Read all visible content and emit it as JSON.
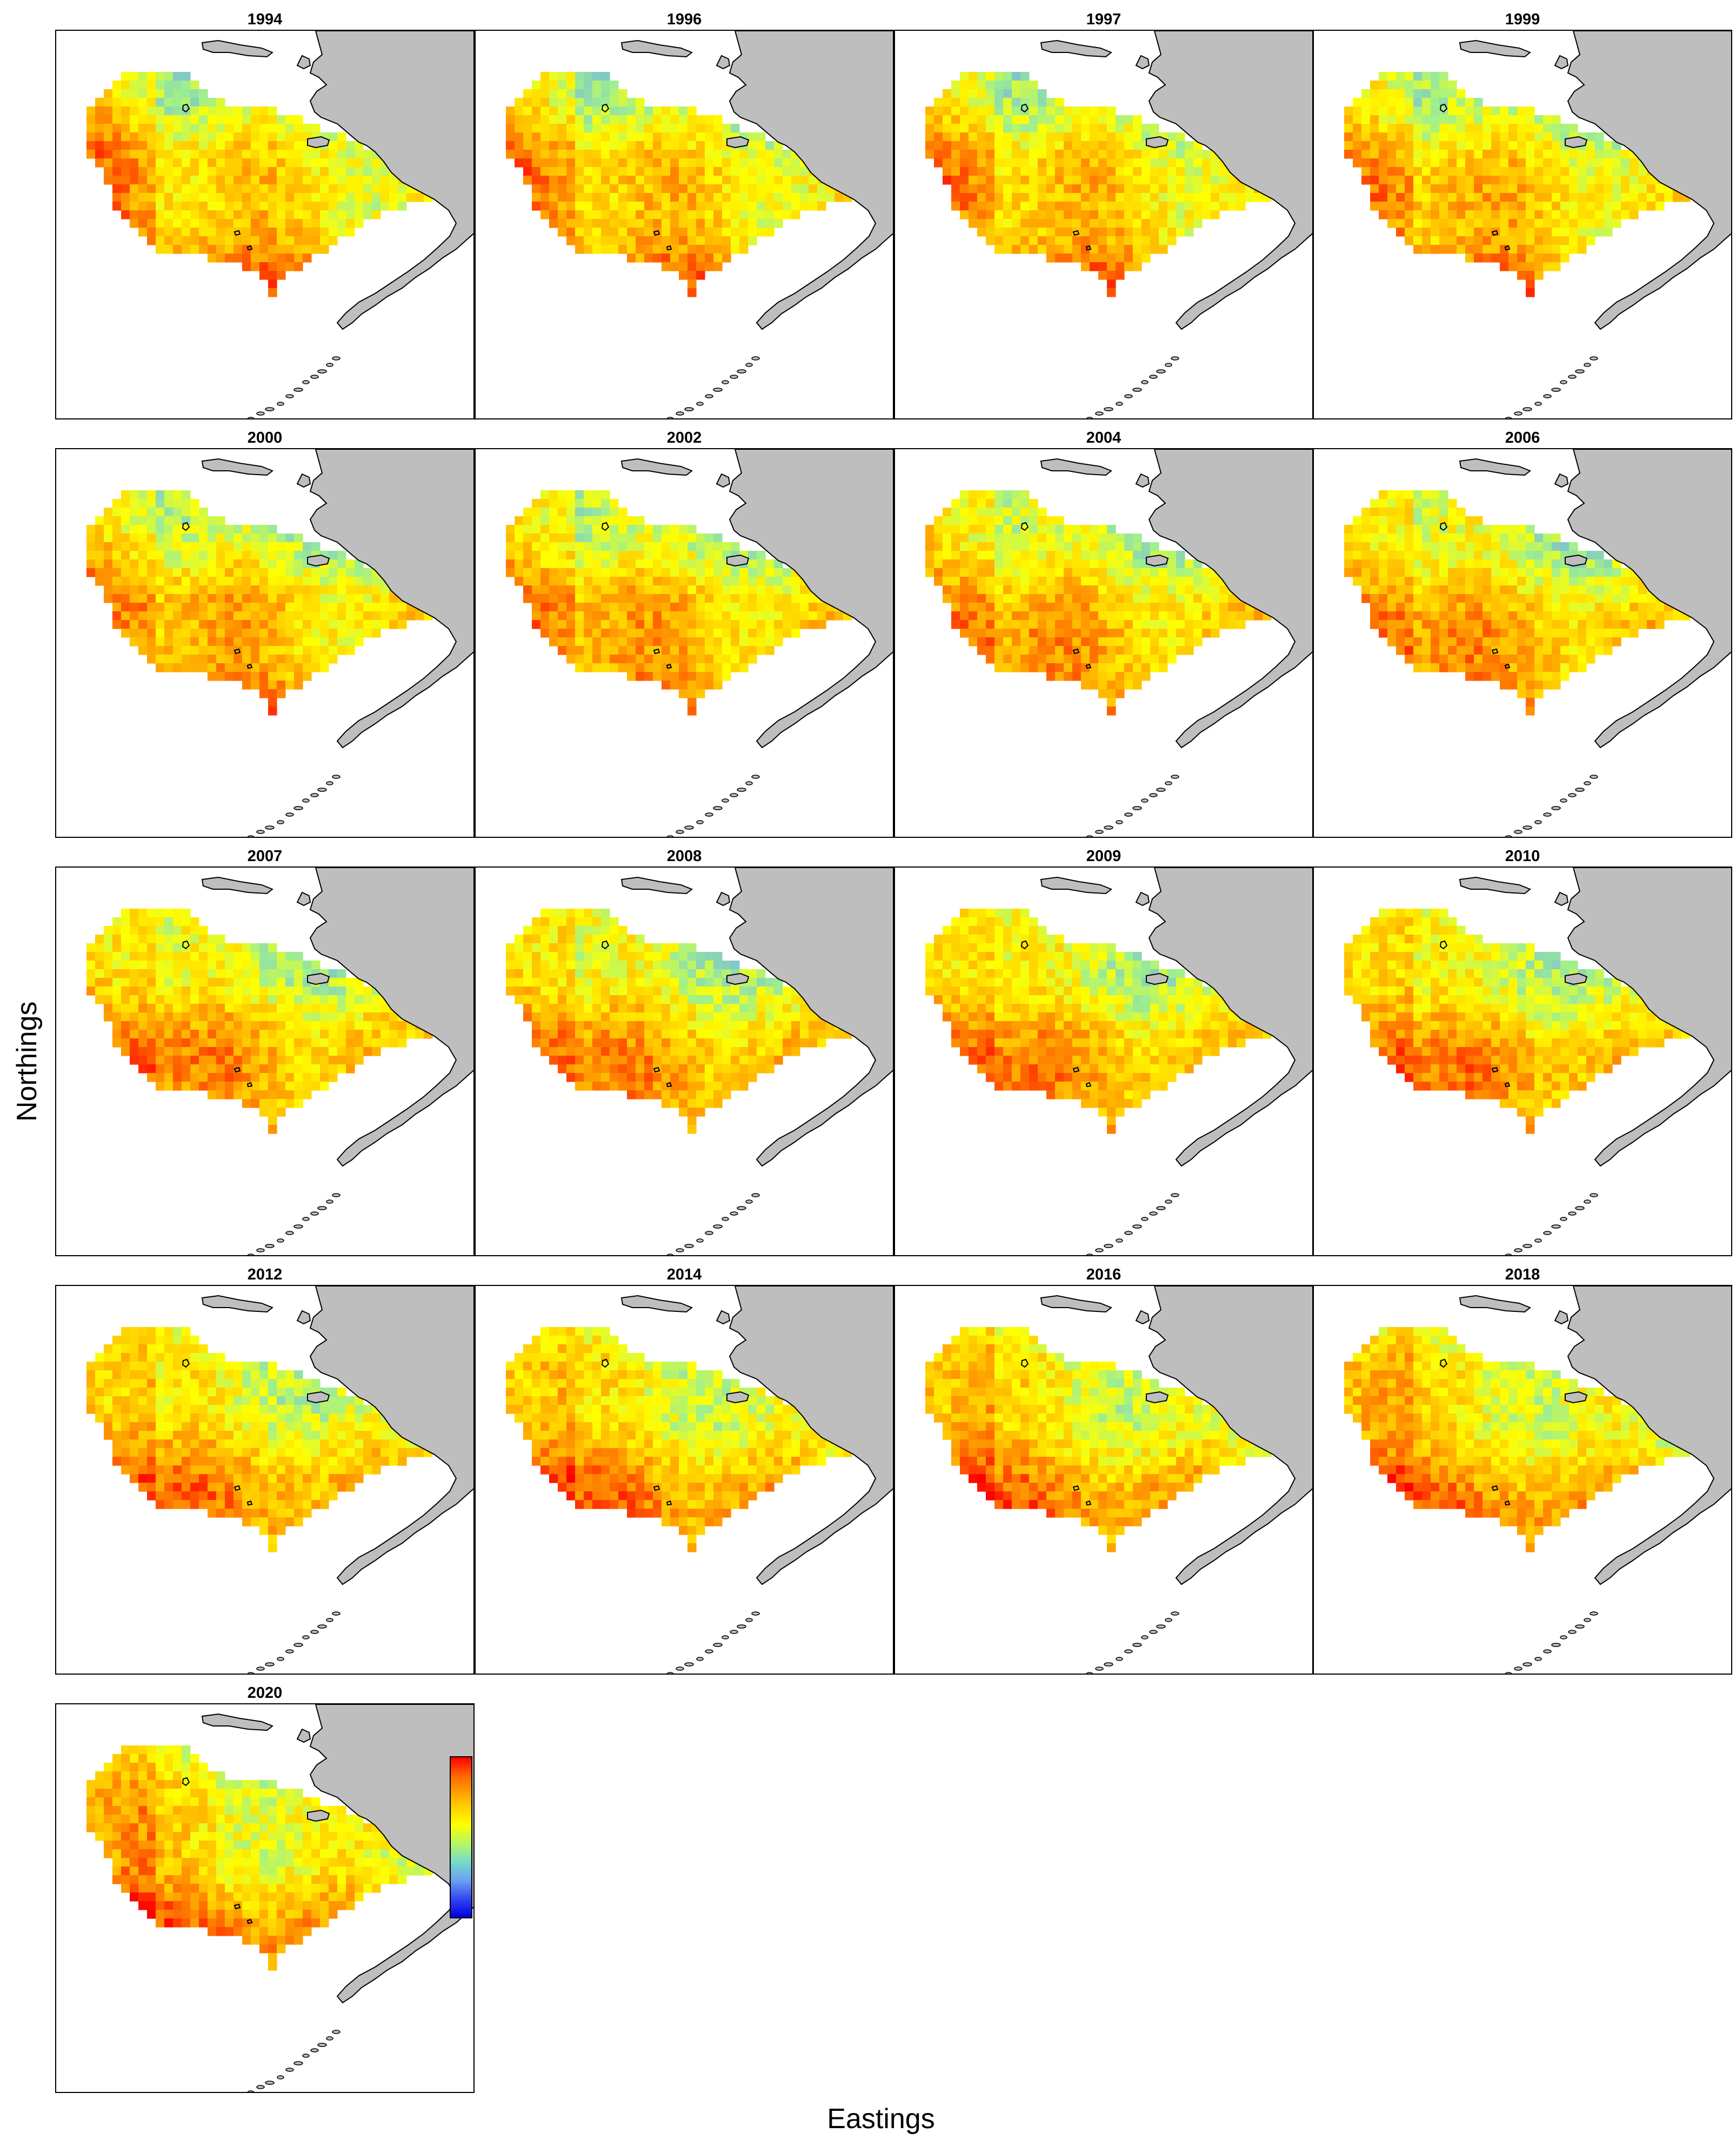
{
  "figure": {
    "xlabel": "Eastings",
    "ylabel": "Northings",
    "years": [
      "1994",
      "1996",
      "1997",
      "1999",
      "2000",
      "2002",
      "2004",
      "2006",
      "2007",
      "2008",
      "2009",
      "2010",
      "2012",
      "2014",
      "2016",
      "2018",
      "2020"
    ]
  },
  "legend": {
    "ticks": [
      "8.9",
      "4.1",
      "-0.8",
      "-5.6"
    ],
    "min": -5.6,
    "max": 8.9,
    "colors": [
      "#ff0000",
      "#ff7f00",
      "#ffff00",
      "#9ef08a",
      "#70a8f0",
      "#0000ff"
    ]
  },
  "map_colors": {
    "land": "#bebebe",
    "land_border": "#000000"
  },
  "chart_data": {
    "type": "heatmap",
    "title": "",
    "xlabel": "Eastings",
    "ylabel": "Northings",
    "color_range": [
      -5.6,
      8.9
    ],
    "legend_ticks": [
      8.9,
      4.1,
      -0.8,
      -5.6
    ],
    "panels": [
      "1994",
      "1996",
      "1997",
      "1999",
      "2000",
      "2002",
      "2004",
      "2006",
      "2007",
      "2008",
      "2009",
      "2010",
      "2012",
      "2014",
      "2016",
      "2018",
      "2020"
    ]
  }
}
